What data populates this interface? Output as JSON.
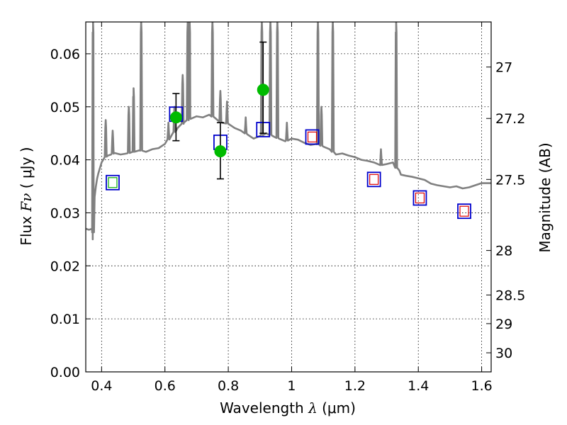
{
  "chart_data": {
    "type": "scatter",
    "title": "",
    "xlabel": "Wavelength",
    "xlabel_symbol": "λ",
    "xlabel_unit": "(μm)",
    "ylabel": "Flux",
    "ylabel_symbol": "Fν",
    "ylabel_unit": "( μJy )",
    "y2label": "Magnitude (AB)",
    "xlim": [
      0.35,
      1.63
    ],
    "ylim": [
      0.0,
      0.066
    ],
    "grid": true,
    "legend": "none",
    "x_ticks": [
      0.4,
      0.6,
      0.8,
      1.0,
      1.2,
      1.4,
      1.6
    ],
    "x_tick_labels": [
      "0.4",
      "0.6",
      "0.8",
      "1",
      "1.2",
      "1.4",
      "1.6"
    ],
    "y_ticks": [
      0.0,
      0.01,
      0.02,
      0.03,
      0.04,
      0.05,
      0.06
    ],
    "y_tick_labels": [
      "0.00",
      "0.01",
      "0.02",
      "0.03",
      "0.04",
      "0.05",
      "0.06"
    ],
    "y2_ticks": [
      {
        "label": "27",
        "flux": 0.0575
      },
      {
        "label": "27.2",
        "flux": 0.0478
      },
      {
        "label": "27.5",
        "flux": 0.0363
      },
      {
        "label": "28",
        "flux": 0.0229
      },
      {
        "label": "28.5",
        "flux": 0.0145
      },
      {
        "label": "29",
        "flux": 0.0091
      },
      {
        "label": "30",
        "flux": 0.0036
      }
    ],
    "series": [
      {
        "kind": "model_spectrum",
        "color": "#808080",
        "points": [
          [
            0.35,
            0.027
          ],
          [
            0.36,
            0.0268
          ],
          [
            0.37,
            0.027
          ],
          [
            0.372,
            0.025
          ],
          [
            0.375,
            0.029
          ],
          [
            0.378,
            0.033
          ],
          [
            0.382,
            0.035
          ],
          [
            0.386,
            0.0365
          ],
          [
            0.39,
            0.0375
          ],
          [
            0.395,
            0.0385
          ],
          [
            0.4,
            0.0395
          ],
          [
            0.41,
            0.0405
          ],
          [
            0.42,
            0.0408
          ],
          [
            0.43,
            0.041
          ],
          [
            0.44,
            0.0413
          ],
          [
            0.46,
            0.041
          ],
          [
            0.48,
            0.0412
          ],
          [
            0.5,
            0.0415
          ],
          [
            0.52,
            0.0418
          ],
          [
            0.54,
            0.0415
          ],
          [
            0.56,
            0.042
          ],
          [
            0.58,
            0.0422
          ],
          [
            0.6,
            0.043
          ],
          [
            0.62,
            0.0445
          ],
          [
            0.64,
            0.046
          ],
          [
            0.66,
            0.047
          ],
          [
            0.68,
            0.0478
          ],
          [
            0.7,
            0.0482
          ],
          [
            0.72,
            0.048
          ],
          [
            0.74,
            0.0485
          ],
          [
            0.76,
            0.0478
          ],
          [
            0.78,
            0.047
          ],
          [
            0.8,
            0.0468
          ],
          [
            0.82,
            0.046
          ],
          [
            0.84,
            0.0455
          ],
          [
            0.86,
            0.0448
          ],
          [
            0.88,
            0.044
          ],
          [
            0.9,
            0.0445
          ],
          [
            0.92,
            0.045
          ],
          [
            0.94,
            0.0445
          ],
          [
            0.96,
            0.044
          ],
          [
            0.98,
            0.0435
          ],
          [
            1.0,
            0.044
          ],
          [
            1.02,
            0.0438
          ],
          [
            1.04,
            0.0432
          ],
          [
            1.06,
            0.0428
          ],
          [
            1.08,
            0.043
          ],
          [
            1.1,
            0.0425
          ],
          [
            1.12,
            0.042
          ],
          [
            1.14,
            0.041
          ],
          [
            1.16,
            0.0412
          ],
          [
            1.18,
            0.0408
          ],
          [
            1.2,
            0.0405
          ],
          [
            1.22,
            0.04
          ],
          [
            1.24,
            0.0398
          ],
          [
            1.26,
            0.0395
          ],
          [
            1.28,
            0.039
          ],
          [
            1.3,
            0.0392
          ],
          [
            1.32,
            0.0395
          ],
          [
            1.33,
            0.0385
          ],
          [
            1.34,
            0.038
          ],
          [
            1.345,
            0.0372
          ],
          [
            1.36,
            0.037
          ],
          [
            1.38,
            0.0368
          ],
          [
            1.4,
            0.0365
          ],
          [
            1.42,
            0.0362
          ],
          [
            1.44,
            0.0355
          ],
          [
            1.46,
            0.0352
          ],
          [
            1.48,
            0.035
          ],
          [
            1.5,
            0.0348
          ],
          [
            1.52,
            0.035
          ],
          [
            1.54,
            0.0346
          ],
          [
            1.56,
            0.0348
          ],
          [
            1.58,
            0.0352
          ],
          [
            1.6,
            0.0356
          ],
          [
            1.63,
            0.0356
          ]
        ],
        "emission_lines": [
          {
            "x": 0.373,
            "peak": 0.066
          },
          {
            "x": 0.413,
            "peak": 0.0475
          },
          {
            "x": 0.435,
            "peak": 0.0455
          },
          {
            "x": 0.486,
            "peak": 0.05
          },
          {
            "x": 0.501,
            "peak": 0.0535
          },
          {
            "x": 0.525,
            "peak": 0.066
          },
          {
            "x": 0.611,
            "peak": 0.047
          },
          {
            "x": 0.63,
            "peak": 0.05
          },
          {
            "x": 0.656,
            "peak": 0.056
          },
          {
            "x": 0.672,
            "peak": 0.066
          },
          {
            "x": 0.678,
            "peak": 0.066
          },
          {
            "x": 0.75,
            "peak": 0.066
          },
          {
            "x": 0.775,
            "peak": 0.053
          },
          {
            "x": 0.796,
            "peak": 0.051
          },
          {
            "x": 0.855,
            "peak": 0.048
          },
          {
            "x": 0.906,
            "peak": 0.066
          },
          {
            "x": 0.933,
            "peak": 0.066
          },
          {
            "x": 0.955,
            "peak": 0.066
          },
          {
            "x": 0.985,
            "peak": 0.047
          },
          {
            "x": 1.083,
            "peak": 0.066
          },
          {
            "x": 1.094,
            "peak": 0.05
          },
          {
            "x": 1.13,
            "peak": 0.066
          },
          {
            "x": 1.282,
            "peak": 0.042
          },
          {
            "x": 1.33,
            "peak": 0.066
          }
        ]
      },
      {
        "kind": "model_photometry",
        "marker": "open-square",
        "color": "#0000cc",
        "points": [
          [
            0.435,
            0.0357
          ],
          [
            0.635,
            0.0486
          ],
          [
            0.775,
            0.0433
          ],
          [
            0.91,
            0.0457
          ],
          [
            1.065,
            0.0443
          ],
          [
            1.26,
            0.0363
          ],
          [
            1.405,
            0.0328
          ],
          [
            1.545,
            0.0303
          ]
        ]
      },
      {
        "kind": "inner_square",
        "marker": "open-square-small",
        "color_green": "#00aa00",
        "color_red": "#dd0000",
        "points": [
          [
            0.435,
            0.0357,
            "green"
          ],
          [
            1.065,
            0.0443,
            "red"
          ],
          [
            1.26,
            0.0363,
            "red"
          ],
          [
            1.405,
            0.0328,
            "red"
          ],
          [
            1.545,
            0.0303,
            "red"
          ]
        ]
      },
      {
        "kind": "observed_photometry",
        "marker": "filled-circle",
        "color": "#00bb00",
        "points": [
          {
            "x": 0.635,
            "y": 0.048,
            "ylo": 0.0436,
            "yhi": 0.0525
          },
          {
            "x": 0.775,
            "y": 0.0416,
            "ylo": 0.0364,
            "yhi": 0.047
          },
          {
            "x": 0.91,
            "y": 0.0532,
            "ylo": 0.045,
            "yhi": 0.0622
          }
        ]
      }
    ]
  }
}
